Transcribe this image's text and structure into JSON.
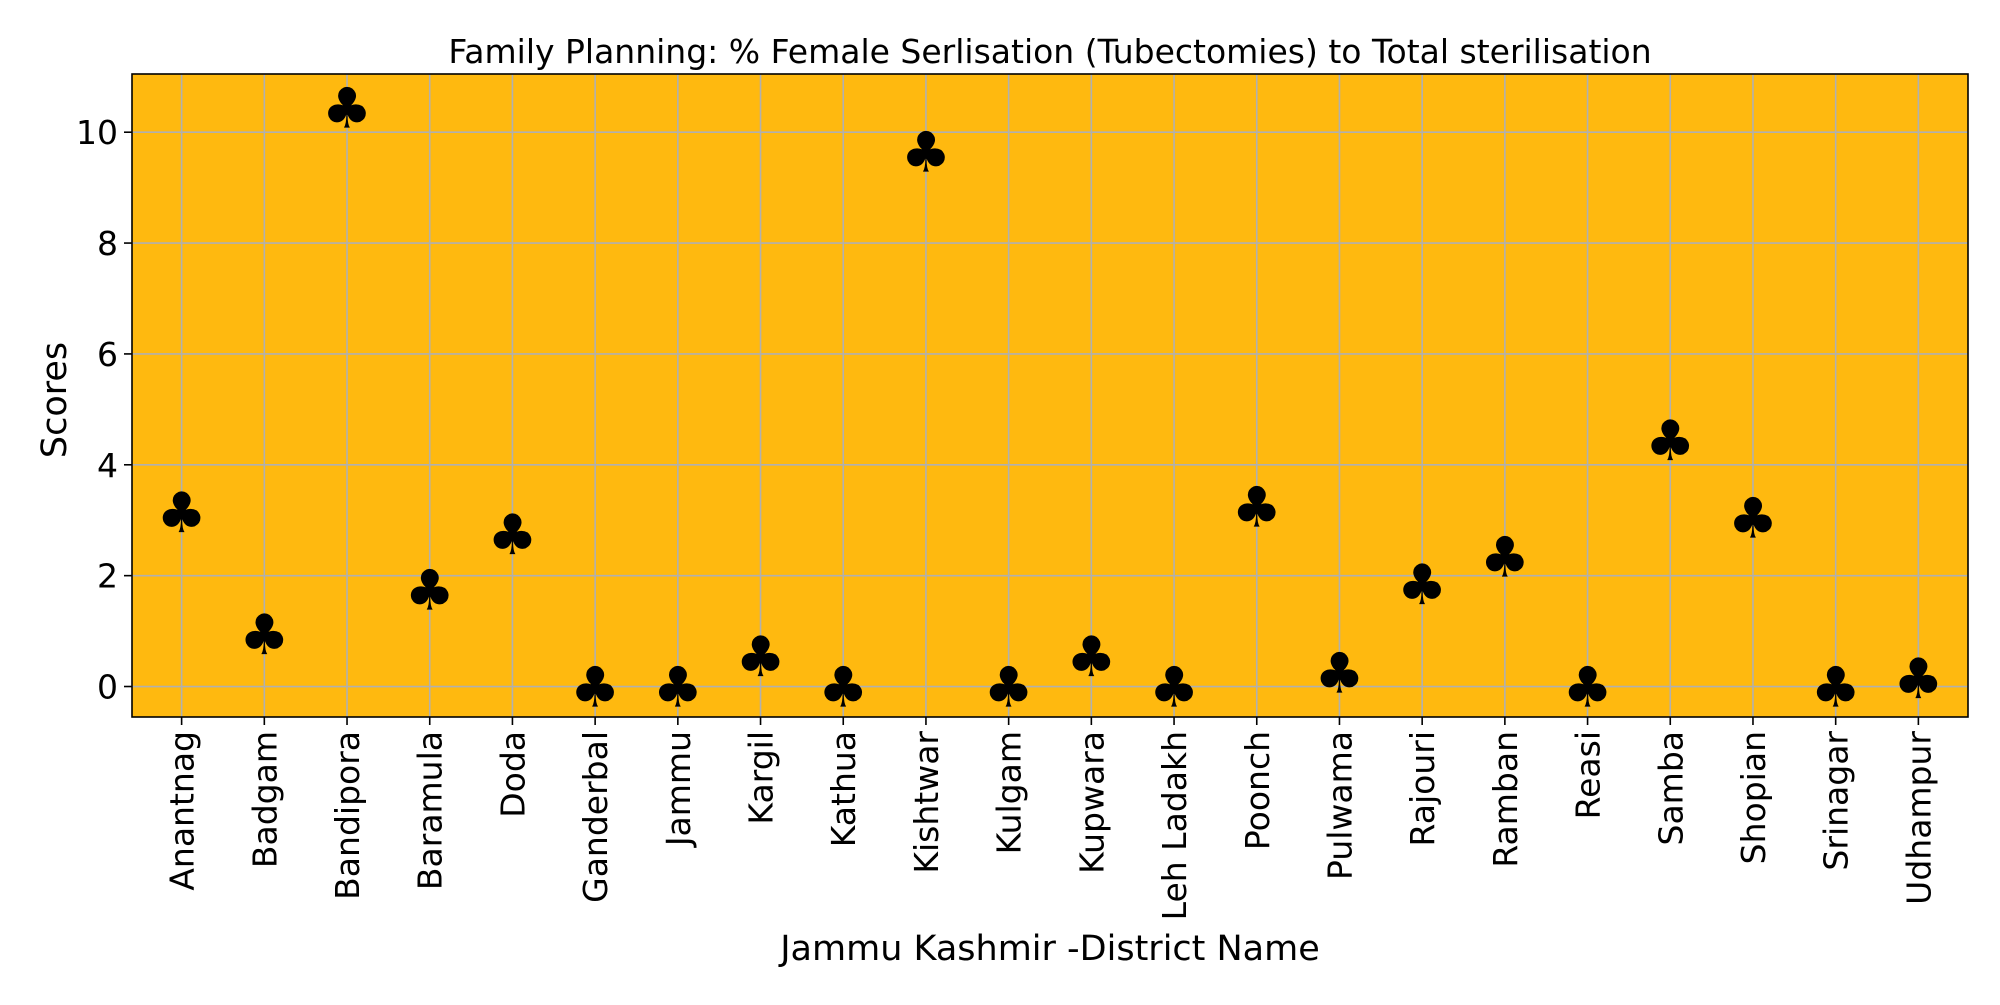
{
  "chart_data": {
    "type": "scatter",
    "title": "Family Planning: % Female Serlisation (Tubectomies) to Total sterilisation",
    "xlabel": "Jammu Kashmir -District Name",
    "ylabel": "Scores",
    "categories": [
      "Anantnag",
      "Badgam",
      "Bandipora",
      "Baramula",
      "Doda",
      "Ganderbal",
      "Jammu",
      "Kargil",
      "Kathua",
      "Kishtwar",
      "Kulgam",
      "Kupwara",
      "Leh Ladakh",
      "Poonch",
      "Pulwama",
      "Rajouri",
      "Ramban",
      "Reasi",
      "Samba",
      "Shopian",
      "Srinagar",
      "Udhampur"
    ],
    "values": [
      3.15,
      0.95,
      10.45,
      1.75,
      2.75,
      0.0,
      0.0,
      0.55,
      0.0,
      9.65,
      0.0,
      0.55,
      0.0,
      3.25,
      0.25,
      1.85,
      2.35,
      0.0,
      4.45,
      3.05,
      0.0,
      0.15
    ],
    "ylim": [
      -0.55,
      11.05
    ],
    "yticks": [
      0,
      2,
      4,
      6,
      8,
      10
    ],
    "grid": true,
    "marker": "club",
    "colors": {
      "plot_background": "#ffb90f",
      "marker": "#006400",
      "grid": "#b0b0b0"
    }
  }
}
